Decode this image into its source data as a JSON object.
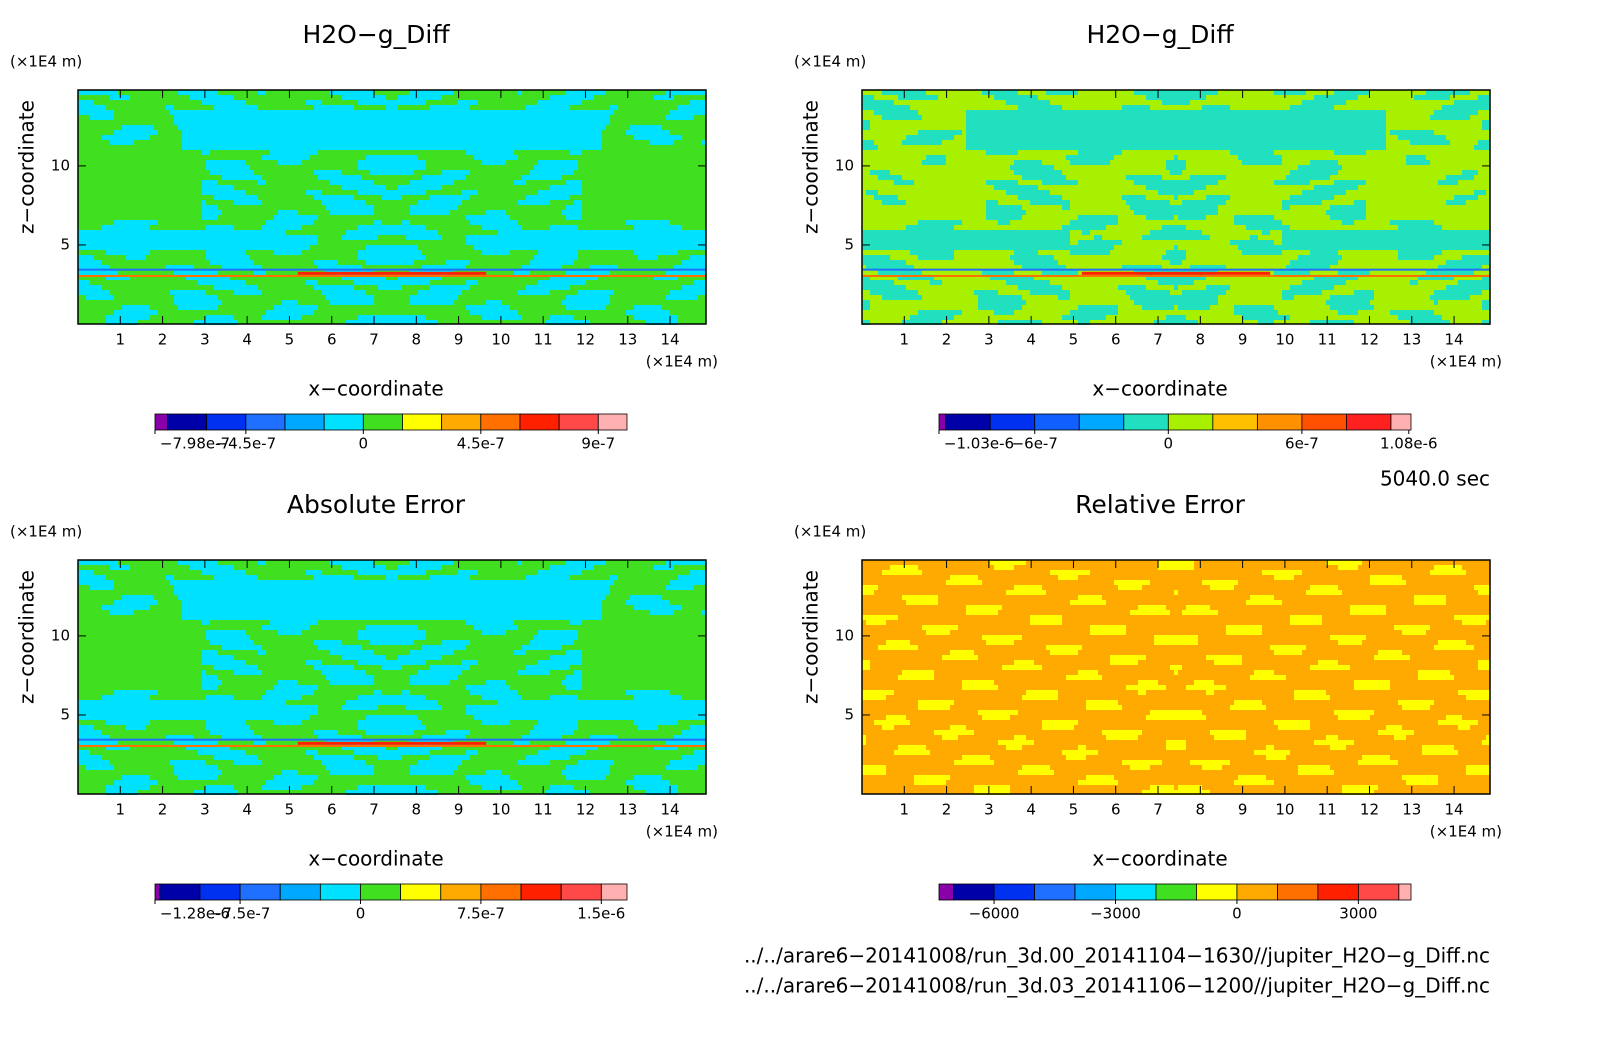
{
  "chart_data": [
    {
      "type": "contour",
      "title": "H2O−g_Diff",
      "xlabel": "x−coordinate",
      "ylabel": "z−coordinate",
      "xunit": "(×1E4 m)",
      "yunit": "(×1E4 m)",
      "xlim": [
        0,
        14.85
      ],
      "ylim": [
        0,
        14.8
      ],
      "xticks": [
        1,
        2,
        3,
        4,
        5,
        6,
        7,
        8,
        9,
        10,
        11,
        12,
        13,
        14
      ],
      "yticks": [
        5,
        10
      ],
      "colorbar": {
        "levels": [
          -7.98e-07,
          -7.5e-07,
          -6e-07,
          -4.5e-07,
          -3e-07,
          -1.5e-07,
          0,
          1.5e-07,
          3e-07,
          4.5e-07,
          6e-07,
          7.5e-07,
          9e-07,
          1.01e-06
        ],
        "colors": [
          "#8a00a8",
          "#0000a8",
          "#0030f0",
          "#2070ff",
          "#00a8ff",
          "#00e0ff",
          "#40e020",
          "#ffff00",
          "#ffaa00",
          "#ff7000",
          "#ff2000",
          "#ff4848",
          "#ffb0b0"
        ],
        "ticks": [
          {
            "value": -7.98e-07,
            "label": "−7.98e-7"
          },
          {
            "value": -4.5e-07,
            "label": "−4.5e-7"
          },
          0,
          {
            "value": 4.5e-07,
            "label": "4.5e-7"
          },
          {
            "value": 9e-07,
            "label": "9e-7"
          }
        ]
      }
    },
    {
      "type": "contour",
      "title": "H2O−g_Diff",
      "xlabel": "x−coordinate",
      "ylabel": "z−coordinate",
      "xunit": "(×1E4 m)",
      "yunit": "(×1E4 m)",
      "xlim": [
        0,
        14.85
      ],
      "ylim": [
        0,
        14.8
      ],
      "xticks": [
        1,
        2,
        3,
        4,
        5,
        6,
        7,
        8,
        9,
        10,
        11,
        12,
        13,
        14
      ],
      "yticks": [
        5,
        10
      ],
      "colorbar": {
        "levels": [
          -1.03e-06,
          -1e-06,
          -8e-07,
          -6e-07,
          -4e-07,
          -2e-07,
          0,
          2e-07,
          4e-07,
          6e-07,
          8e-07,
          1e-06,
          1.09e-06
        ],
        "colors": [
          "#8a00a8",
          "#0000a8",
          "#0030f0",
          "#1060ff",
          "#00a8ff",
          "#20e0c0",
          "#a8f000",
          "#ffc000",
          "#ff9000",
          "#ff5000",
          "#ff2020",
          "#ffb0b0"
        ],
        "ticks": [
          {
            "value": -1.03e-06,
            "label": "−1.03e-6"
          },
          {
            "value": -6e-07,
            "label": "−6e-7"
          },
          0,
          {
            "value": 6e-07,
            "label": "6e-7"
          },
          {
            "value": 1.08e-06,
            "label": "1.08e-6"
          }
        ]
      }
    },
    {
      "type": "contour",
      "title": "Absolute Error",
      "xlabel": "x−coordinate",
      "ylabel": "z−coordinate",
      "xunit": "(×1E4 m)",
      "yunit": "(×1E4 m)",
      "xlim": [
        0,
        14.85
      ],
      "ylim": [
        0,
        14.8
      ],
      "xticks": [
        1,
        2,
        3,
        4,
        5,
        6,
        7,
        8,
        9,
        10,
        11,
        12,
        13,
        14
      ],
      "yticks": [
        5,
        10
      ],
      "colorbar": {
        "levels": [
          -1.28e-06,
          -1.25e-06,
          -1e-06,
          -7.5e-07,
          -5e-07,
          -2.5e-07,
          0,
          2.5e-07,
          5e-07,
          7.5e-07,
          1e-06,
          1.25e-06,
          1.5e-06,
          1.66e-06
        ],
        "colors": [
          "#8a00a8",
          "#0000a8",
          "#0030f0",
          "#2070ff",
          "#00a8ff",
          "#00e0ff",
          "#40e020",
          "#ffff00",
          "#ffaa00",
          "#ff7000",
          "#ff2000",
          "#ff4848",
          "#ffb0b0"
        ],
        "ticks": [
          {
            "value": -1.28e-06,
            "label": "−1.28e-6"
          },
          {
            "value": -7.5e-07,
            "label": "−7.5e-7"
          },
          0,
          {
            "value": 7.5e-07,
            "label": "7.5e-7"
          },
          {
            "value": 1.5e-06,
            "label": "1.5e-6"
          }
        ]
      }
    },
    {
      "type": "contour",
      "title": "Relative Error",
      "xlabel": "x−coordinate",
      "ylabel": "z−coordinate",
      "xunit": "(×1E4 m)",
      "yunit": "(×1E4 m)",
      "xlim": [
        0,
        14.85
      ],
      "ylim": [
        0,
        14.8
      ],
      "xticks": [
        1,
        2,
        3,
        4,
        5,
        6,
        7,
        8,
        9,
        10,
        11,
        12,
        13,
        14
      ],
      "yticks": [
        5,
        10
      ],
      "colorbar": {
        "levels": [
          -7360,
          -7000,
          -6000,
          -5000,
          -4000,
          -3000,
          -2000,
          -1000,
          0,
          1000,
          2000,
          3000,
          4000,
          4300
        ],
        "colors": [
          "#8a00a8",
          "#0000a8",
          "#0030f0",
          "#2070ff",
          "#00a8ff",
          "#00e0ff",
          "#40e020",
          "#ffff00",
          "#ffaa00",
          "#ff7000",
          "#ff2000",
          "#ff4848",
          "#ffb0b0"
        ],
        "ticks": [
          {
            "value": -6000,
            "label": "−6000"
          },
          {
            "value": -3000,
            "label": "−3000"
          },
          0,
          3000
        ]
      }
    }
  ],
  "annotations": [
    "5040.0 sec",
    "../../arare6−20141008/run_3d.00_20141104−1630//jupiter_H2O−g_Diff.nc",
    "../../arare6−20141008/run_3d.03_20141106−1200//jupiter_H2O−g_Diff.nc"
  ]
}
